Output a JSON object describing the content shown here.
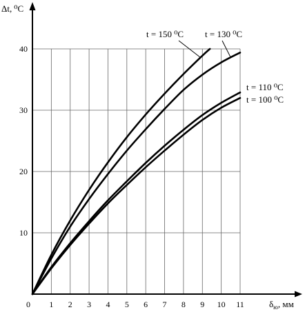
{
  "chart_data": {
    "type": "line",
    "ylabel_main": "Δt,",
    "ylabel_unit": "⁰С",
    "xlabel_main": "δ",
    "xlabel_sub": "ю",
    "xlabel_unit": ", мм",
    "xlim": [
      0,
      11
    ],
    "ylim": [
      0,
      40
    ],
    "x_ticks": [
      "0",
      "1",
      "2",
      "3",
      "4",
      "5",
      "6",
      "7",
      "8",
      "9",
      "10",
      "11"
    ],
    "y_ticks": [
      "10",
      "20",
      "30",
      "40"
    ],
    "grid": true,
    "series": [
      {
        "name": "t = 150 ⁰С",
        "points": [
          [
            0,
            0
          ],
          [
            1,
            6.4
          ],
          [
            2,
            12.0
          ],
          [
            3,
            17.0
          ],
          [
            4,
            21.5
          ],
          [
            5,
            25.6
          ],
          [
            6,
            29.3
          ],
          [
            7,
            32.7
          ],
          [
            8,
            35.9
          ],
          [
            9,
            38.9
          ],
          [
            9.4,
            40.0
          ]
        ]
      },
      {
        "name": "t = 130 ⁰С",
        "points": [
          [
            0,
            0
          ],
          [
            1,
            5.8
          ],
          [
            2,
            11.0
          ],
          [
            3,
            15.5
          ],
          [
            4,
            19.6
          ],
          [
            5,
            23.4
          ],
          [
            6,
            26.9
          ],
          [
            7,
            30.2
          ],
          [
            8,
            33.3
          ],
          [
            9,
            35.8
          ],
          [
            10,
            37.8
          ],
          [
            11,
            39.4
          ]
        ]
      },
      {
        "name": "t = 110 ⁰С",
        "points": [
          [
            0,
            0
          ],
          [
            1,
            4.4
          ],
          [
            2,
            8.3
          ],
          [
            3,
            11.9
          ],
          [
            4,
            15.3
          ],
          [
            5,
            18.4
          ],
          [
            6,
            21.4
          ],
          [
            7,
            24.2
          ],
          [
            8,
            26.8
          ],
          [
            9,
            29.2
          ],
          [
            10,
            31.2
          ],
          [
            11,
            32.9
          ]
        ]
      },
      {
        "name": "t = 100 ⁰С",
        "points": [
          [
            0,
            0
          ],
          [
            1,
            4.2
          ],
          [
            2,
            8.0
          ],
          [
            3,
            11.5
          ],
          [
            4,
            14.8
          ],
          [
            5,
            17.8
          ],
          [
            6,
            20.7
          ],
          [
            7,
            23.4
          ],
          [
            8,
            26.0
          ],
          [
            9,
            28.4
          ],
          [
            10,
            30.4
          ],
          [
            11,
            32.0
          ]
        ]
      }
    ]
  }
}
